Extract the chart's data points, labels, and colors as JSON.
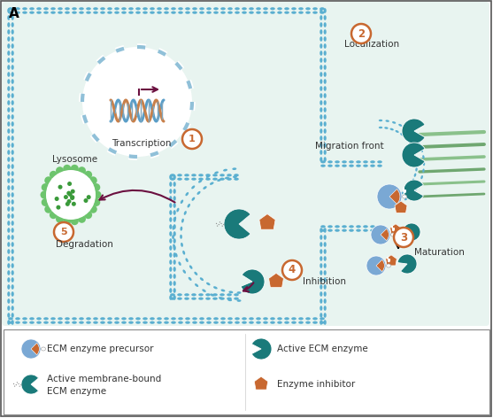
{
  "bg_outer": "#e8f4f0",
  "bg_cell": "#cde8dc",
  "membrane_color": "#5aafd0",
  "membrane_inner": "#7bc8e0",
  "nucleus_bg": "#e8f4fb",
  "nucleus_border": "#c0d8e8",
  "lysosome_green": "#6dc46d",
  "teal_enzyme": "#1a7a7a",
  "blue_precursor": "#7aa8d4",
  "orange_inhibitor": "#c86830",
  "arrow_color": "#6b1040",
  "num_circle_color": "#c86830",
  "label_color": "#333333",
  "green_fiber1": "#7ab87a",
  "green_fiber2": "#5a9a5a",
  "white": "#ffffff",
  "legend_border": "#999999",
  "title": "A",
  "labels": {
    "transcription": "Transcription",
    "localization": "Localization",
    "migration_front": "Migration front",
    "maturation": "Maturation",
    "inhibition": "Inhibition",
    "degradation": "Degradation",
    "lysosome": "Lysosome"
  },
  "legend_items": [
    "ECM enzyme precursor",
    "Active membrane-bound\nECM enzyme",
    "Active ECM enzyme",
    "Enzyme inhibitor"
  ]
}
